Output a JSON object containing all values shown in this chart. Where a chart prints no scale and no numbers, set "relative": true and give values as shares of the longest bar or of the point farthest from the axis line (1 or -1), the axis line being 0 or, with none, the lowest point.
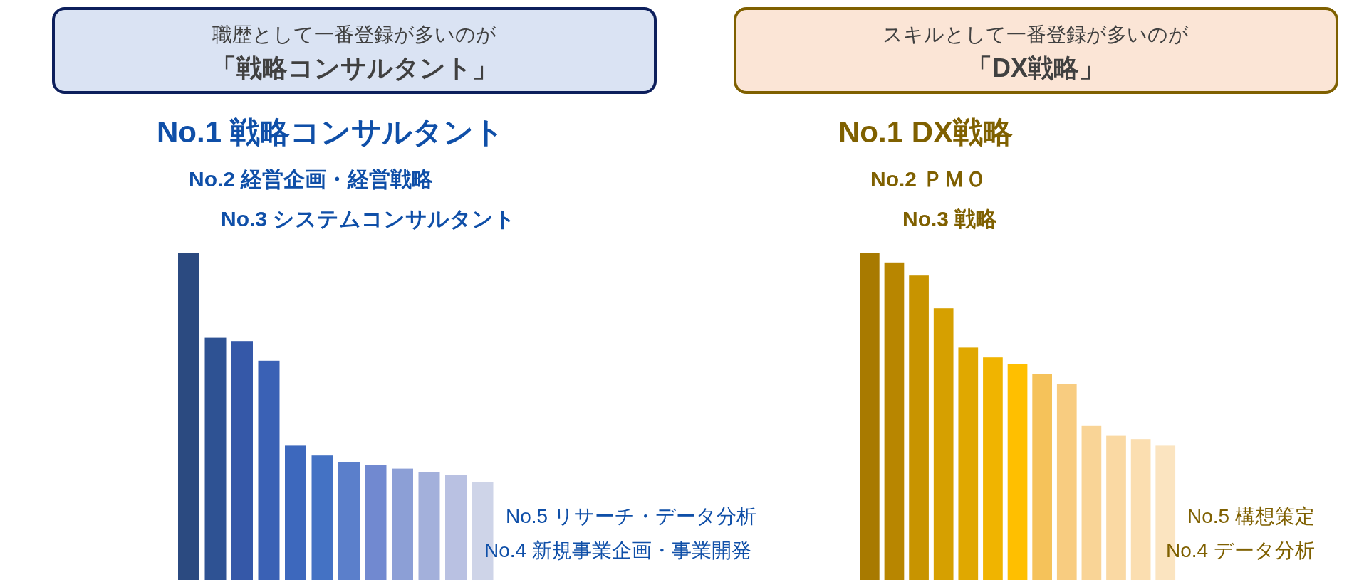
{
  "chart_data": [
    {
      "type": "bar",
      "relative": true,
      "title": "職歴として一番登録が多いのが",
      "subtitle": "「戦略コンサルタント」",
      "categories": [
        null,
        null,
        null,
        null,
        null,
        null,
        null,
        null,
        null,
        null,
        null,
        null
      ],
      "values": [
        1,
        0.74,
        0.73,
        0.67,
        0.41,
        0.38,
        0.36,
        0.35,
        0.34,
        0.33,
        0.32,
        0.3
      ],
      "colors": [
        "#2b4a80",
        "#2e5293",
        "#3558a8",
        "#3a61b5",
        "#3d68bd",
        "#4472c4",
        "#5b7fcb",
        "#7189d0",
        "#8c9fd6",
        "#a3b0db",
        "#b9c1e2",
        "#ced4e8"
      ],
      "annotations": [
        "No.1 戦略コンサルタント",
        "No.2 経営企画・経営戦略",
        "No.3 システムコンサルタント",
        "No.5 リサーチ・データ分析",
        "No.4 新規事業企画・事業開発"
      ]
    },
    {
      "type": "bar",
      "relative": true,
      "title": "スキルとして一番登録が多いのが",
      "subtitle": "「DX戦略」",
      "categories": [
        null,
        null,
        null,
        null,
        null,
        null,
        null,
        null,
        null,
        null,
        null,
        null,
        null
      ],
      "values": [
        1,
        0.97,
        0.93,
        0.83,
        0.71,
        0.68,
        0.66,
        0.63,
        0.6,
        0.47,
        0.44,
        0.43,
        0.41
      ],
      "colors": [
        "#a87a00",
        "#b88600",
        "#c89400",
        "#d6a000",
        "#e0a800",
        "#f0b400",
        "#ffbf00",
        "#f5c25a",
        "#f8cc80",
        "#f9d496",
        "#fad9a3",
        "#fbdeb0",
        "#fbe4c0"
      ],
      "annotations": [
        "No.1 DX戦略",
        "No.2 ＰＭＯ",
        "No.3 戦略",
        "No.5 構想策定",
        "No.4 データ分析"
      ]
    }
  ]
}
